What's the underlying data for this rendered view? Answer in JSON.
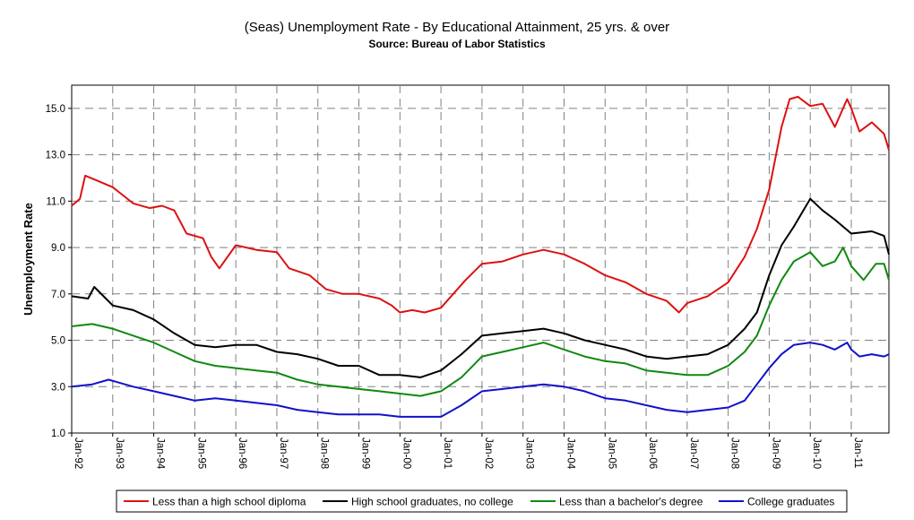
{
  "chart_data": {
    "type": "line",
    "title": "(Seas) Unemployment Rate - By Educational Attainment, 25 yrs. & over",
    "subtitle": "Source: Bureau of Labor Statistics",
    "xlabel": "",
    "ylabel": "Unemployment Rate",
    "x_start": "1992-01",
    "x_end": "2011-12",
    "xlim": [
      1992.0,
      2011.917
    ],
    "ylim": [
      1.0,
      16.0
    ],
    "yticks": [
      1.0,
      3.0,
      5.0,
      7.0,
      9.0,
      11.0,
      13.0,
      15.0
    ],
    "yticklabels": [
      "1.0",
      "3.0",
      "5.0",
      "7.0",
      "9.0",
      "11.0",
      "13.0",
      "15.0"
    ],
    "xticks": [
      1992,
      1993,
      1994,
      1995,
      1996,
      1997,
      1998,
      1999,
      2000,
      2001,
      2002,
      2003,
      2004,
      2005,
      2006,
      2007,
      2008,
      2009,
      2010,
      2011
    ],
    "xticklabels": [
      "Jan-92",
      "Jan-93",
      "Jan-94",
      "Jan-95",
      "Jan-96",
      "Jan-97",
      "Jan-98",
      "Jan-99",
      "Jan-00",
      "Jan-01",
      "Jan-02",
      "Jan-03",
      "Jan-04",
      "Jan-05",
      "Jan-06",
      "Jan-07",
      "Jan-08",
      "Jan-09",
      "Jan-10",
      "Jan-11"
    ],
    "grid": true,
    "legend": "bottom",
    "series": [
      {
        "name": "Less than a high school diploma",
        "color": "#dd1111",
        "points": [
          [
            1992.0,
            10.8
          ],
          [
            1992.2,
            11.1
          ],
          [
            1992.33,
            12.1
          ],
          [
            1992.6,
            11.9
          ],
          [
            1993.0,
            11.6
          ],
          [
            1993.5,
            10.9
          ],
          [
            1993.9,
            10.7
          ],
          [
            1994.2,
            10.8
          ],
          [
            1994.5,
            10.6
          ],
          [
            1994.8,
            9.6
          ],
          [
            1995.2,
            9.4
          ],
          [
            1995.4,
            8.6
          ],
          [
            1995.6,
            8.1
          ],
          [
            1996.0,
            9.1
          ],
          [
            1996.5,
            8.9
          ],
          [
            1997.0,
            8.8
          ],
          [
            1997.3,
            8.1
          ],
          [
            1997.8,
            7.8
          ],
          [
            1998.2,
            7.2
          ],
          [
            1998.6,
            7.0
          ],
          [
            1999.0,
            7.0
          ],
          [
            1999.5,
            6.8
          ],
          [
            1999.8,
            6.5
          ],
          [
            2000.0,
            6.2
          ],
          [
            2000.3,
            6.3
          ],
          [
            2000.6,
            6.2
          ],
          [
            2001.0,
            6.4
          ],
          [
            2001.3,
            7.0
          ],
          [
            2001.6,
            7.6
          ],
          [
            2002.0,
            8.3
          ],
          [
            2002.5,
            8.4
          ],
          [
            2003.0,
            8.7
          ],
          [
            2003.5,
            8.9
          ],
          [
            2004.0,
            8.7
          ],
          [
            2004.5,
            8.3
          ],
          [
            2005.0,
            7.8
          ],
          [
            2005.5,
            7.5
          ],
          [
            2006.0,
            7.0
          ],
          [
            2006.5,
            6.7
          ],
          [
            2006.8,
            6.2
          ],
          [
            2007.0,
            6.6
          ],
          [
            2007.5,
            6.9
          ],
          [
            2008.0,
            7.5
          ],
          [
            2008.4,
            8.6
          ],
          [
            2008.7,
            9.8
          ],
          [
            2009.0,
            11.5
          ],
          [
            2009.3,
            14.2
          ],
          [
            2009.5,
            15.4
          ],
          [
            2009.7,
            15.5
          ],
          [
            2010.0,
            15.1
          ],
          [
            2010.3,
            15.2
          ],
          [
            2010.6,
            14.2
          ],
          [
            2010.9,
            15.4
          ],
          [
            2011.0,
            15.0
          ],
          [
            2011.2,
            14.0
          ],
          [
            2011.5,
            14.4
          ],
          [
            2011.8,
            13.9
          ],
          [
            2011.917,
            13.2
          ]
        ]
      },
      {
        "name": "High school graduates, no college",
        "color": "#000000",
        "points": [
          [
            1992.0,
            6.9
          ],
          [
            1992.4,
            6.8
          ],
          [
            1992.55,
            7.3
          ],
          [
            1993.0,
            6.5
          ],
          [
            1993.5,
            6.3
          ],
          [
            1994.0,
            5.9
          ],
          [
            1994.5,
            5.3
          ],
          [
            1995.0,
            4.8
          ],
          [
            1995.5,
            4.7
          ],
          [
            1996.0,
            4.8
          ],
          [
            1996.5,
            4.8
          ],
          [
            1997.0,
            4.5
          ],
          [
            1997.5,
            4.4
          ],
          [
            1998.0,
            4.2
          ],
          [
            1998.5,
            3.9
          ],
          [
            1999.0,
            3.9
          ],
          [
            1999.5,
            3.5
          ],
          [
            2000.0,
            3.5
          ],
          [
            2000.5,
            3.4
          ],
          [
            2001.0,
            3.7
          ],
          [
            2001.5,
            4.4
          ],
          [
            2002.0,
            5.2
          ],
          [
            2002.5,
            5.3
          ],
          [
            2003.0,
            5.4
          ],
          [
            2003.5,
            5.5
          ],
          [
            2004.0,
            5.3
          ],
          [
            2004.5,
            5.0
          ],
          [
            2005.0,
            4.8
          ],
          [
            2005.5,
            4.6
          ],
          [
            2006.0,
            4.3
          ],
          [
            2006.5,
            4.2
          ],
          [
            2007.0,
            4.3
          ],
          [
            2007.5,
            4.4
          ],
          [
            2008.0,
            4.8
          ],
          [
            2008.4,
            5.5
          ],
          [
            2008.7,
            6.2
          ],
          [
            2009.0,
            7.8
          ],
          [
            2009.3,
            9.1
          ],
          [
            2009.6,
            9.9
          ],
          [
            2009.9,
            10.8
          ],
          [
            2010.0,
            11.1
          ],
          [
            2010.3,
            10.6
          ],
          [
            2010.6,
            10.2
          ],
          [
            2011.0,
            9.6
          ],
          [
            2011.5,
            9.7
          ],
          [
            2011.8,
            9.5
          ],
          [
            2011.917,
            8.7
          ]
        ]
      },
      {
        "name": "Less than a bachelor's degree",
        "color": "#118811",
        "points": [
          [
            1992.0,
            5.6
          ],
          [
            1992.5,
            5.7
          ],
          [
            1993.0,
            5.5
          ],
          [
            1993.5,
            5.2
          ],
          [
            1994.0,
            4.9
          ],
          [
            1994.5,
            4.5
          ],
          [
            1995.0,
            4.1
          ],
          [
            1995.5,
            3.9
          ],
          [
            1996.0,
            3.8
          ],
          [
            1996.5,
            3.7
          ],
          [
            1997.0,
            3.6
          ],
          [
            1997.5,
            3.3
          ],
          [
            1998.0,
            3.1
          ],
          [
            1998.5,
            3.0
          ],
          [
            1999.0,
            2.9
          ],
          [
            1999.5,
            2.8
          ],
          [
            2000.0,
            2.7
          ],
          [
            2000.5,
            2.6
          ],
          [
            2001.0,
            2.8
          ],
          [
            2001.5,
            3.4
          ],
          [
            2002.0,
            4.3
          ],
          [
            2002.5,
            4.5
          ],
          [
            2003.0,
            4.7
          ],
          [
            2003.5,
            4.9
          ],
          [
            2004.0,
            4.6
          ],
          [
            2004.5,
            4.3
          ],
          [
            2005.0,
            4.1
          ],
          [
            2005.5,
            4.0
          ],
          [
            2006.0,
            3.7
          ],
          [
            2006.5,
            3.6
          ],
          [
            2007.0,
            3.5
          ],
          [
            2007.5,
            3.5
          ],
          [
            2008.0,
            3.9
          ],
          [
            2008.4,
            4.5
          ],
          [
            2008.7,
            5.2
          ],
          [
            2009.0,
            6.5
          ],
          [
            2009.3,
            7.6
          ],
          [
            2009.6,
            8.4
          ],
          [
            2010.0,
            8.8
          ],
          [
            2010.3,
            8.2
          ],
          [
            2010.6,
            8.4
          ],
          [
            2010.8,
            9.0
          ],
          [
            2011.0,
            8.2
          ],
          [
            2011.3,
            7.6
          ],
          [
            2011.6,
            8.3
          ],
          [
            2011.8,
            8.3
          ],
          [
            2011.917,
            7.6
          ]
        ]
      },
      {
        "name": "College graduates",
        "color": "#1111cc",
        "points": [
          [
            1992.0,
            3.0
          ],
          [
            1992.5,
            3.1
          ],
          [
            1992.9,
            3.3
          ],
          [
            1993.5,
            3.0
          ],
          [
            1994.0,
            2.8
          ],
          [
            1994.5,
            2.6
          ],
          [
            1995.0,
            2.4
          ],
          [
            1995.5,
            2.5
          ],
          [
            1996.0,
            2.4
          ],
          [
            1996.5,
            2.3
          ],
          [
            1997.0,
            2.2
          ],
          [
            1997.5,
            2.0
          ],
          [
            1998.0,
            1.9
          ],
          [
            1998.5,
            1.8
          ],
          [
            1999.0,
            1.8
          ],
          [
            1999.5,
            1.8
          ],
          [
            2000.0,
            1.7
          ],
          [
            2000.5,
            1.7
          ],
          [
            2001.0,
            1.7
          ],
          [
            2001.5,
            2.2
          ],
          [
            2002.0,
            2.8
          ],
          [
            2002.5,
            2.9
          ],
          [
            2003.0,
            3.0
          ],
          [
            2003.5,
            3.1
          ],
          [
            2004.0,
            3.0
          ],
          [
            2004.5,
            2.8
          ],
          [
            2005.0,
            2.5
          ],
          [
            2005.5,
            2.4
          ],
          [
            2006.0,
            2.2
          ],
          [
            2006.5,
            2.0
          ],
          [
            2007.0,
            1.9
          ],
          [
            2007.5,
            2.0
          ],
          [
            2008.0,
            2.1
          ],
          [
            2008.4,
            2.4
          ],
          [
            2008.7,
            3.1
          ],
          [
            2009.0,
            3.8
          ],
          [
            2009.3,
            4.4
          ],
          [
            2009.6,
            4.8
          ],
          [
            2010.0,
            4.9
          ],
          [
            2010.3,
            4.8
          ],
          [
            2010.6,
            4.6
          ],
          [
            2010.9,
            4.9
          ],
          [
            2011.0,
            4.6
          ],
          [
            2011.2,
            4.3
          ],
          [
            2011.5,
            4.4
          ],
          [
            2011.8,
            4.3
          ],
          [
            2011.917,
            4.4
          ]
        ]
      }
    ]
  }
}
